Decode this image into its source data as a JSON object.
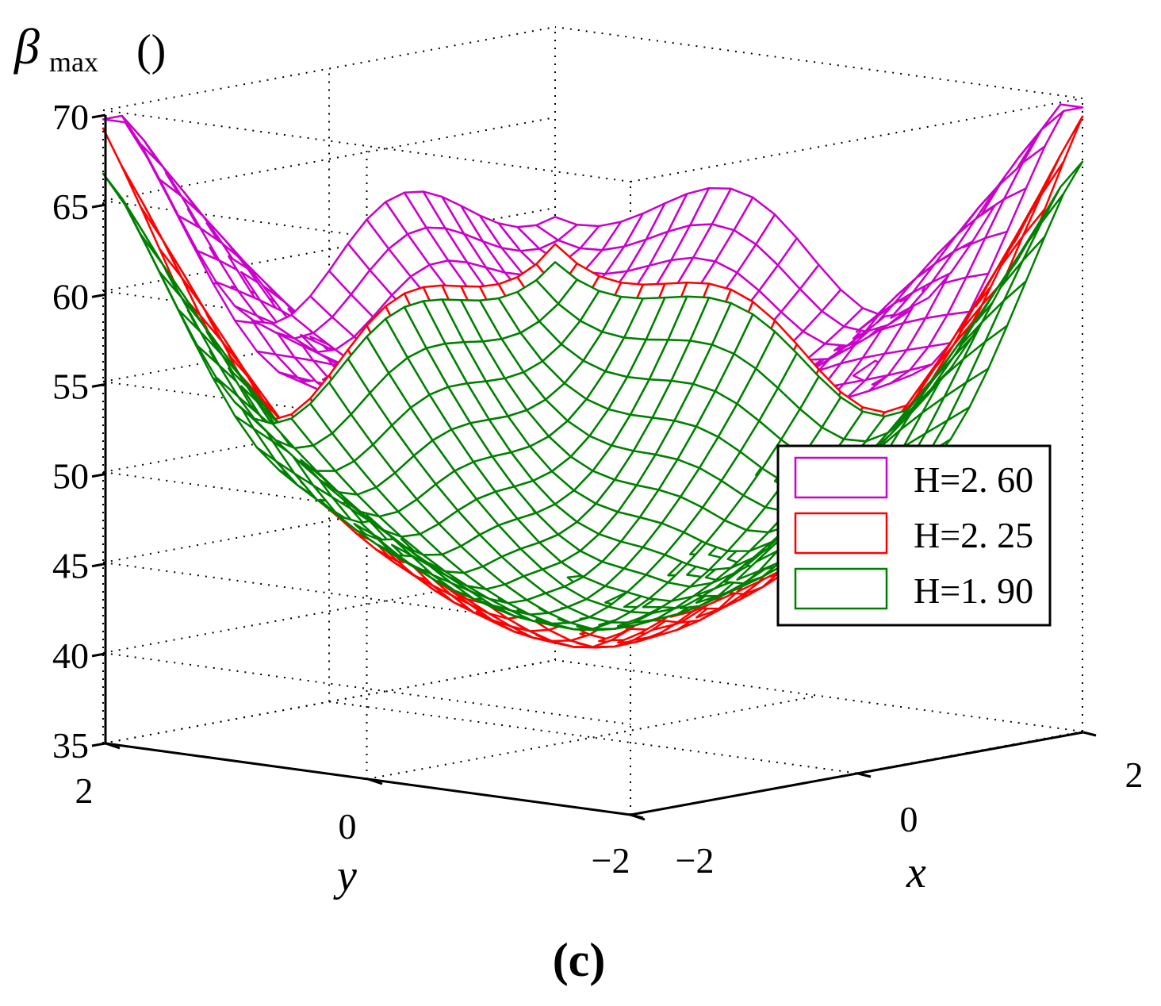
{
  "chart_data": {
    "type": "surface3d",
    "title": "",
    "panel_label": "(c)",
    "xlabel": "x",
    "ylabel": "y",
    "zlabel": {
      "symbol": "β",
      "subscript": "max",
      "unit": "()"
    },
    "x_range": [
      -2,
      2
    ],
    "y_range": [
      -2,
      2
    ],
    "zlim": [
      35,
      70
    ],
    "x_ticks": [
      -2,
      0,
      2
    ],
    "y_ticks": [
      -2,
      0,
      2
    ],
    "z_ticks": [
      35,
      40,
      45,
      50,
      55,
      60,
      65,
      70
    ],
    "x_tick_labels": [
      "−2",
      "0",
      "2"
    ],
    "y_tick_labels": [
      "−2",
      "0",
      "2"
    ],
    "z_tick_labels": [
      "35",
      "40",
      "45",
      "50",
      "55",
      "60",
      "65",
      "70"
    ],
    "grid": true,
    "grid_style": "dotted",
    "legend_position": "right",
    "series": [
      {
        "name": "H=2. 60",
        "H": 2.6,
        "color": "#cc00cc",
        "z_min": 50.5,
        "z_max": 69.5,
        "z_peak": 65.5,
        "ripple": 6.0
      },
      {
        "name": "H=2. 25",
        "H": 2.25,
        "color": "#ff0000",
        "z_min": 40.0,
        "z_max": 69.0,
        "z_peak": 63.5,
        "ripple": 5.5
      },
      {
        "name": "H=1. 90",
        "H": 1.9,
        "color": "#008000",
        "z_min": 41.0,
        "z_max": 66.5,
        "z_peak": 62.0,
        "ripple": 5.0
      }
    ]
  }
}
